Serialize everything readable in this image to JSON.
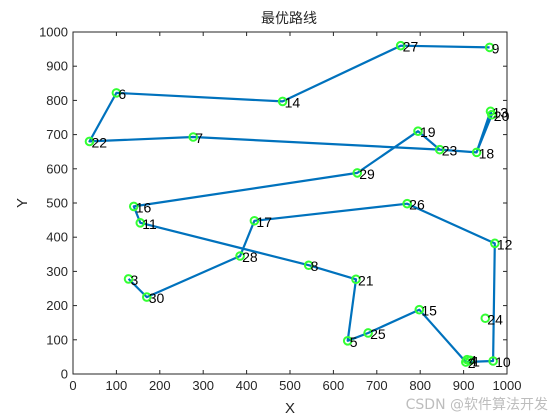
{
  "chart_data": {
    "type": "line",
    "title": "最优路线",
    "xlabel": "X",
    "ylabel": "Y",
    "xlim": [
      0,
      1000
    ],
    "ylim": [
      0,
      1000
    ],
    "xticks": [
      "0",
      "100",
      "200",
      "300",
      "400",
      "500",
      "600",
      "700",
      "800",
      "900",
      "1000"
    ],
    "yticks": [
      "0",
      "100",
      "200",
      "300",
      "400",
      "500",
      "600",
      "700",
      "800",
      "900",
      "1000"
    ],
    "grid": false,
    "line_color": "#0072BD",
    "marker_color": "#33FF33",
    "points": [
      {
        "label": "1",
        "x": 915,
        "y": 40
      },
      {
        "label": "2",
        "x": 905,
        "y": 35
      },
      {
        "label": "3",
        "x": 128,
        "y": 278
      },
      {
        "label": "4",
        "x": 908,
        "y": 42
      },
      {
        "label": "5",
        "x": 633,
        "y": 97
      },
      {
        "label": "6",
        "x": 100,
        "y": 822
      },
      {
        "label": "7",
        "x": 277,
        "y": 693
      },
      {
        "label": "8",
        "x": 543,
        "y": 318
      },
      {
        "label": "9",
        "x": 960,
        "y": 955
      },
      {
        "label": "10",
        "x": 968,
        "y": 38
      },
      {
        "label": "11",
        "x": 155,
        "y": 442
      },
      {
        "label": "12",
        "x": 972,
        "y": 382
      },
      {
        "label": "13",
        "x": 962,
        "y": 768
      },
      {
        "label": "14",
        "x": 483,
        "y": 797
      },
      {
        "label": "15",
        "x": 798,
        "y": 188
      },
      {
        "label": "16",
        "x": 140,
        "y": 490
      },
      {
        "label": "17",
        "x": 418,
        "y": 448
      },
      {
        "label": "18",
        "x": 930,
        "y": 648
      },
      {
        "label": "19",
        "x": 795,
        "y": 710
      },
      {
        "label": "20",
        "x": 965,
        "y": 758
      },
      {
        "label": "21",
        "x": 652,
        "y": 277
      },
      {
        "label": "22",
        "x": 38,
        "y": 680
      },
      {
        "label": "23",
        "x": 845,
        "y": 656
      },
      {
        "label": "24",
        "x": 950,
        "y": 163
      },
      {
        "label": "25",
        "x": 680,
        "y": 120
      },
      {
        "label": "26",
        "x": 770,
        "y": 498
      },
      {
        "label": "27",
        "x": 755,
        "y": 960
      },
      {
        "label": "28",
        "x": 385,
        "y": 345
      },
      {
        "label": "29",
        "x": 655,
        "y": 588
      },
      {
        "label": "30",
        "x": 170,
        "y": 225
      }
    ],
    "route": [
      "9",
      "27",
      "14",
      "6",
      "22",
      "7",
      "23",
      "18",
      "20",
      "13",
      "18",
      "23",
      "19",
      "29",
      "16",
      "11",
      "8",
      "21",
      "5",
      "25",
      "15",
      "2",
      "10",
      "12",
      "26",
      "17",
      "28",
      "30",
      "3"
    ]
  },
  "watermark": "CSDN @软件算法开发"
}
